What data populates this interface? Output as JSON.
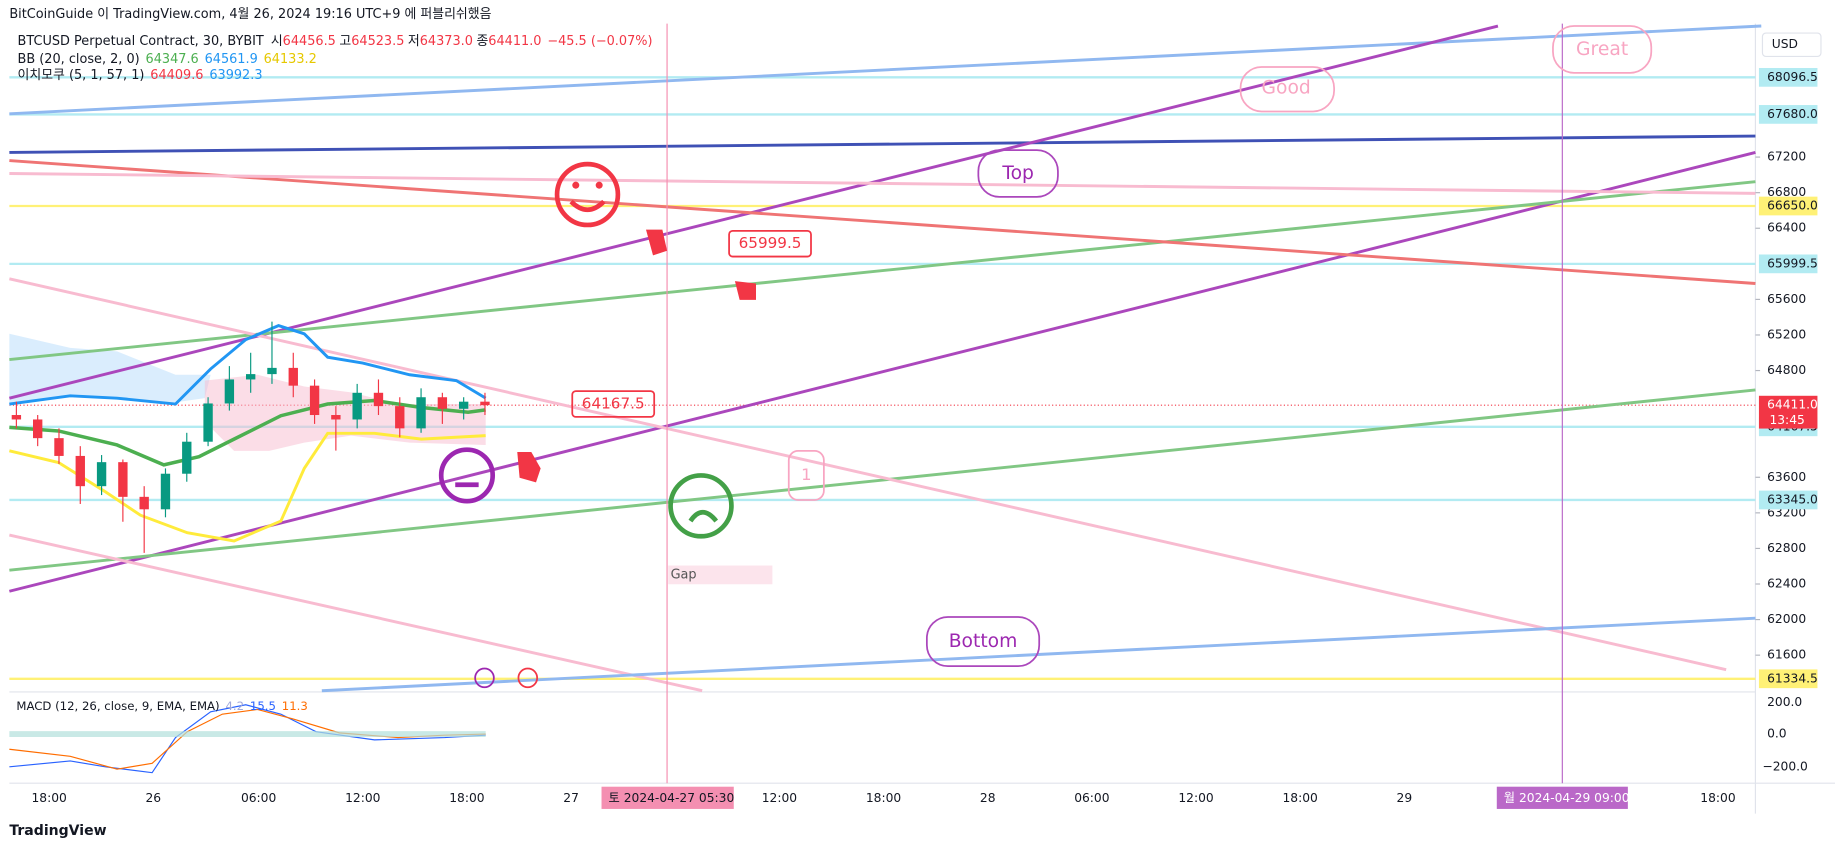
{
  "header": {
    "publisher": "BitCoinGuide 이 TradingView.com, 4월 26, 2024 19:16 UTC+9 에 퍼블리쉬했음",
    "symbol": "BTCUSD Perpetual Contract, 30, BYBIT",
    "ohlc": [
      "시",
      "64456.5",
      "고",
      "64523.5",
      "저",
      "64373.0",
      "종",
      "64411.0",
      "−45.5 (−0.07%)"
    ],
    "bb": [
      "BB (20, close, 2, 0)",
      "64347.6",
      "64561.9",
      "64133.2"
    ],
    "ichimoku": [
      "이치모쿠 (5, 1, 57, 1)",
      "64409.6",
      "63992.3"
    ]
  },
  "currency": "USD",
  "price_axis": {
    "ylim": [
      61200,
      68700
    ],
    "yticks": [
      61600,
      62000,
      62400,
      62800,
      63200,
      63600,
      64800,
      65200,
      65600,
      66400,
      66800,
      67200
    ],
    "levels": [
      68096.5,
      {
        "value": 67680,
        "label": "67680.0"
      },
      {
        "value": 66650,
        "label": "66650.0"
      },
      65999.5,
      64167.5,
      {
        "value": 63345,
        "label": "63345.0"
      },
      61334.5
    ],
    "level_colors": [
      "#b2ebf2",
      "#b2ebf2",
      "#fff176",
      "#b2ebf2",
      "#b2ebf2",
      "#b2ebf2",
      "#fff176"
    ],
    "last_price": {
      "value": 64411,
      "label": "64411.0"
    },
    "countdown": "13:45"
  },
  "candles": {
    "open": [
      64300,
      64250,
      64040,
      63840,
      63500,
      63770,
      63380,
      63240,
      63640,
      64000,
      64430,
      64700,
      64760,
      64830,
      64630,
      64300,
      64250,
      64550,
      64400,
      64150,
      64500,
      64370,
      64450
    ],
    "high": [
      64450,
      64300,
      64150,
      63950,
      63850,
      63800,
      63500,
      63700,
      64100,
      64500,
      64850,
      65000,
      65350,
      65000,
      64700,
      64400,
      64650,
      64700,
      64500,
      64600,
      64550,
      64500,
      64550
    ],
    "low": [
      64150,
      63950,
      63750,
      63300,
      63400,
      63100,
      62750,
      63150,
      63550,
      63950,
      64350,
      64550,
      64650,
      64500,
      64200,
      63900,
      64150,
      64300,
      64050,
      64100,
      64200,
      64250,
      64300
    ],
    "close": [
      64250,
      64040,
      63840,
      63500,
      63770,
      63380,
      63240,
      63640,
      64000,
      64430,
      64700,
      64760,
      64830,
      64630,
      64300,
      64250,
      64550,
      64400,
      64150,
      64500,
      64370,
      64450,
      64411
    ]
  },
  "annotations": {
    "good": "Good",
    "great": "Great",
    "top": "Top",
    "bottom": "Bottom",
    "label_a": "65999.5",
    "label_b": "64167.5",
    "one": "1",
    "gap": "Gap"
  },
  "macd": {
    "label": "MACD (12, 26, close, 9, EMA, EMA)",
    "values": [
      "4.2",
      "15.5",
      "11.3"
    ],
    "ticks": [
      "200.0",
      "0.0",
      "−200.0"
    ]
  },
  "time_axis": {
    "labels": [
      "18:00",
      "26",
      "06:00",
      "12:00",
      "18:00",
      "27",
      "12:00",
      "18:00",
      "28",
      "06:00",
      "12:00",
      "18:00",
      "29",
      "18:00"
    ],
    "cursor_a": "토 2024-04-27  05:30",
    "cursor_b": "월 2024-04-29  09:00"
  },
  "footer": "TradingView"
}
